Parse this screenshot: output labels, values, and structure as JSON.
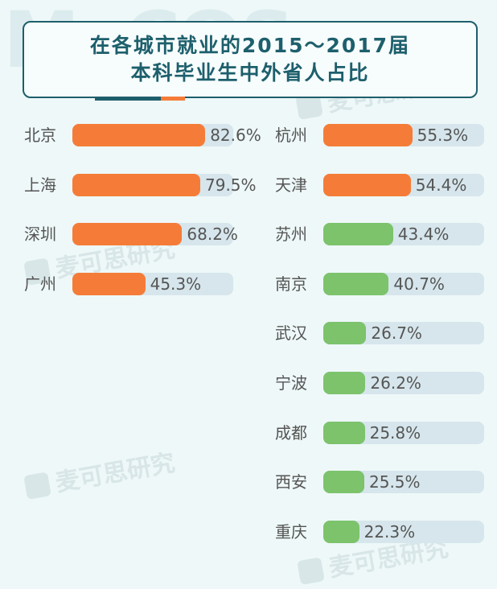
{
  "watermark": {
    "logo": "MyCOS",
    "text": "麦可思研究"
  },
  "title": {
    "line1": "在各城市就业的2015～2017届",
    "line2": "本科毕业生中外省人占比"
  },
  "colors": {
    "high": "#f57c38",
    "low": "#7cc36c",
    "track": "#d6e6ec",
    "title": "#1d5f6c"
  },
  "chart_data": {
    "type": "bar",
    "orientation": "horizontal",
    "title": "在各城市就业的2015～2017届本科毕业生中外省人占比",
    "unit": "%",
    "xlim": [
      0,
      100
    ],
    "grid": false,
    "categories": [
      "北京",
      "上海",
      "深圳",
      "广州",
      "杭州",
      "天津",
      "苏州",
      "南京",
      "武汉",
      "宁波",
      "成都",
      "西安",
      "重庆"
    ],
    "values": [
      82.6,
      79.5,
      68.2,
      45.3,
      55.3,
      54.4,
      43.4,
      40.7,
      26.7,
      26.2,
      25.8,
      25.5,
      22.3
    ],
    "labels": [
      "82.6%",
      "79.5%",
      "68.2%",
      "45.3%",
      "55.3%",
      "54.4%",
      "43.4%",
      "40.7%",
      "26.7%",
      "26.2%",
      "25.8%",
      "25.5%",
      "22.3%"
    ],
    "bar_colors": [
      "#f57c38",
      "#f57c38",
      "#f57c38",
      "#f57c38",
      "#f57c38",
      "#f57c38",
      "#7cc36c",
      "#7cc36c",
      "#7cc36c",
      "#7cc36c",
      "#7cc36c",
      "#7cc36c",
      "#7cc36c"
    ]
  }
}
